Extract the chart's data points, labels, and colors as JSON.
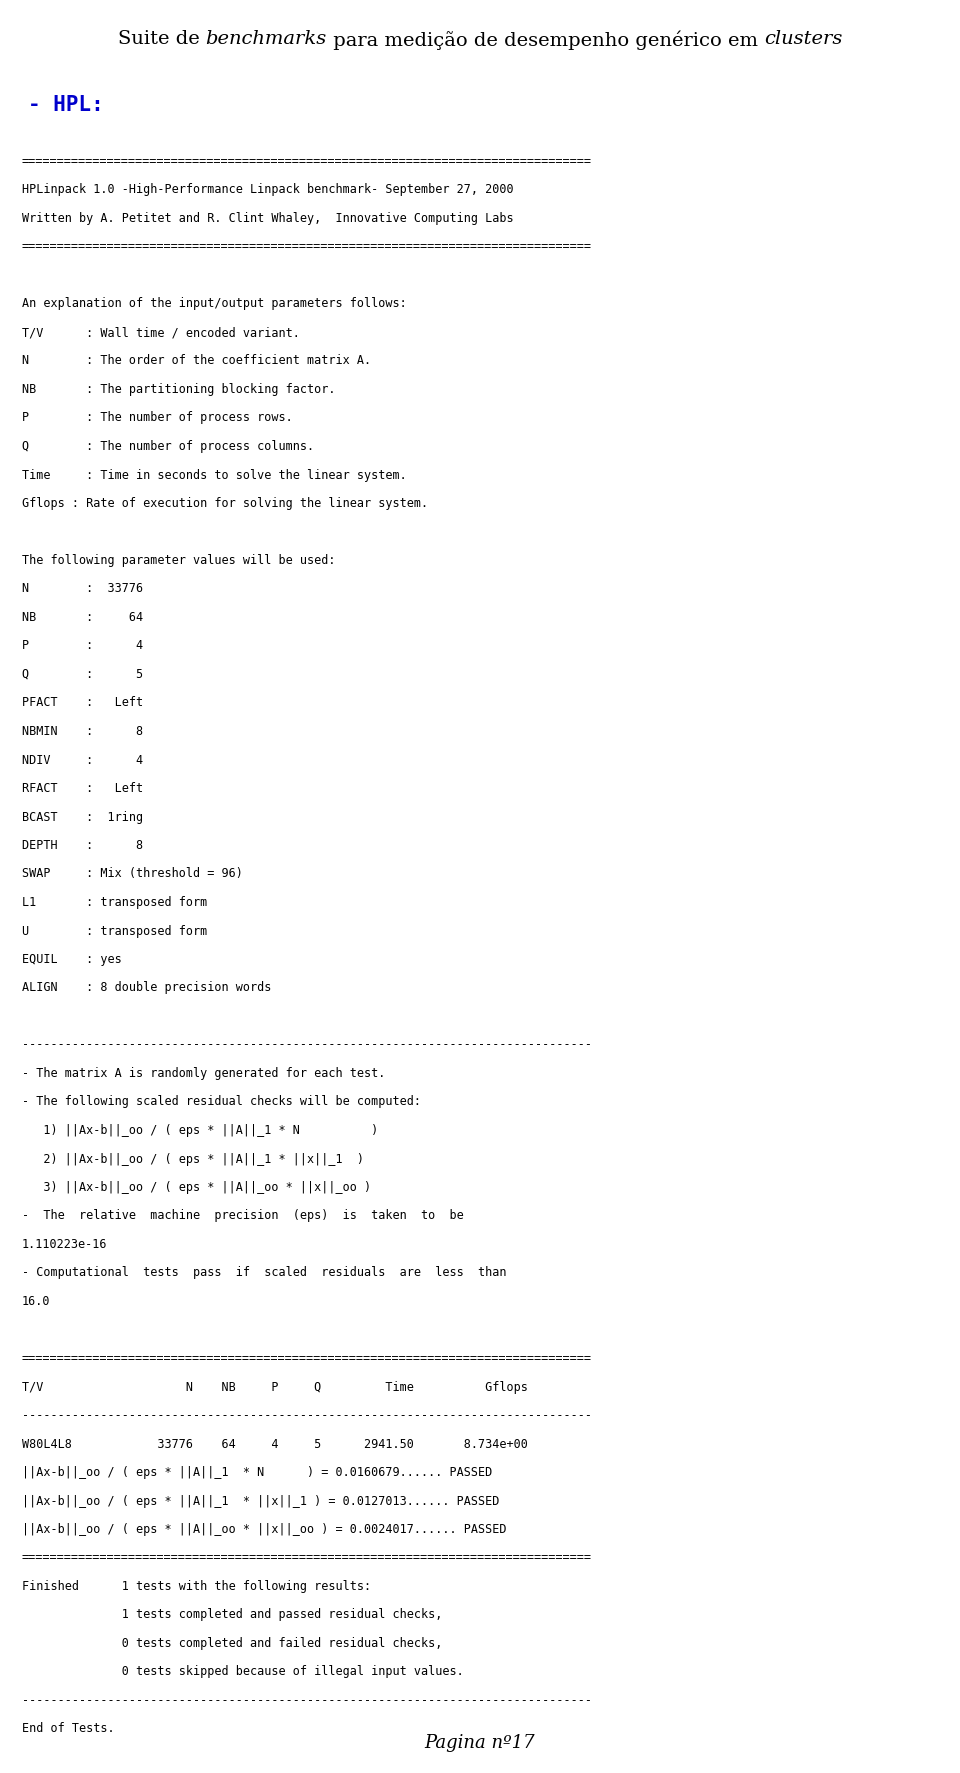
{
  "title_parts": [
    [
      "Suite de ",
      "normal"
    ],
    [
      "benchmarks",
      "italic"
    ],
    [
      " para medição de desempenho genérico em ",
      "normal"
    ],
    [
      "clusters",
      "italic"
    ]
  ],
  "hpl_label": "- HPL:",
  "bg_color": "#ffffff",
  "text_color": "#000000",
  "blue_color": "#0000cc",
  "mono_lines": [
    "================================================================================",
    "HPLinpack 1.0 -High-Performance Linpack benchmark- September 27, 2000",
    "Written by A. Petitet and R. Clint Whaley,  Innovative Computing Labs",
    "================================================================================",
    "",
    "An explanation of the input/output parameters follows:",
    "T/V      : Wall time / encoded variant.",
    "N        : The order of the coefficient matrix A.",
    "NB       : The partitioning blocking factor.",
    "P        : The number of process rows.",
    "Q        : The number of process columns.",
    "Time     : Time in seconds to solve the linear system.",
    "Gflops : Rate of execution for solving the linear system.",
    "",
    "The following parameter values will be used:",
    "N        :  33776",
    "NB       :     64",
    "P        :      4",
    "Q        :      5",
    "PFACT    :   Left",
    "NBMIN    :      8",
    "NDIV     :      4",
    "RFACT    :   Left",
    "BCAST    :  1ring",
    "DEPTH    :      8",
    "SWAP     : Mix (threshold = 96)",
    "L1       : transposed form",
    "U        : transposed form",
    "EQUIL    : yes",
    "ALIGN    : 8 double precision words",
    "",
    "--------------------------------------------------------------------------------",
    "- The matrix A is randomly generated for each test.",
    "- The following scaled residual checks will be computed:",
    "   1) ||Ax-b||_oo / ( eps * ||A||_1 * N          )",
    "   2) ||Ax-b||_oo / ( eps * ||A||_1 * ||x||_1  )",
    "   3) ||Ax-b||_oo / ( eps * ||A||_oo * ||x||_oo )",
    "-  The  relative  machine  precision  (eps)  is  taken  to  be",
    "1.110223e-16",
    "- Computational  tests  pass  if  scaled  residuals  are  less  than",
    "16.0",
    "",
    "================================================================================",
    "T/V                    N    NB     P     Q         Time          Gflops",
    "--------------------------------------------------------------------------------",
    "W80L4L8            33776    64     4     5      2941.50       8.734e+00",
    "||Ax-b||_oo / ( eps * ||A||_1  * N      ) = 0.0160679...... PASSED",
    "||Ax-b||_oo / ( eps * ||A||_1  * ||x||_1 ) = 0.0127013...... PASSED",
    "||Ax-b||_oo / ( eps * ||A||_oo * ||x||_oo ) = 0.0024017...... PASSED",
    "================================================================================",
    "Finished      1 tests with the following results:",
    "              1 tests completed and passed residual checks,",
    "              0 tests completed and failed residual checks,",
    "              0 tests skipped because of illegal input values.",
    "--------------------------------------------------------------------------------",
    "End of Tests.",
    "================================================================================"
  ],
  "footer": "Pagina nº17",
  "title_fontsize": 14,
  "mono_fontsize": 8.5,
  "hpl_fontsize": 15,
  "footer_fontsize": 13
}
